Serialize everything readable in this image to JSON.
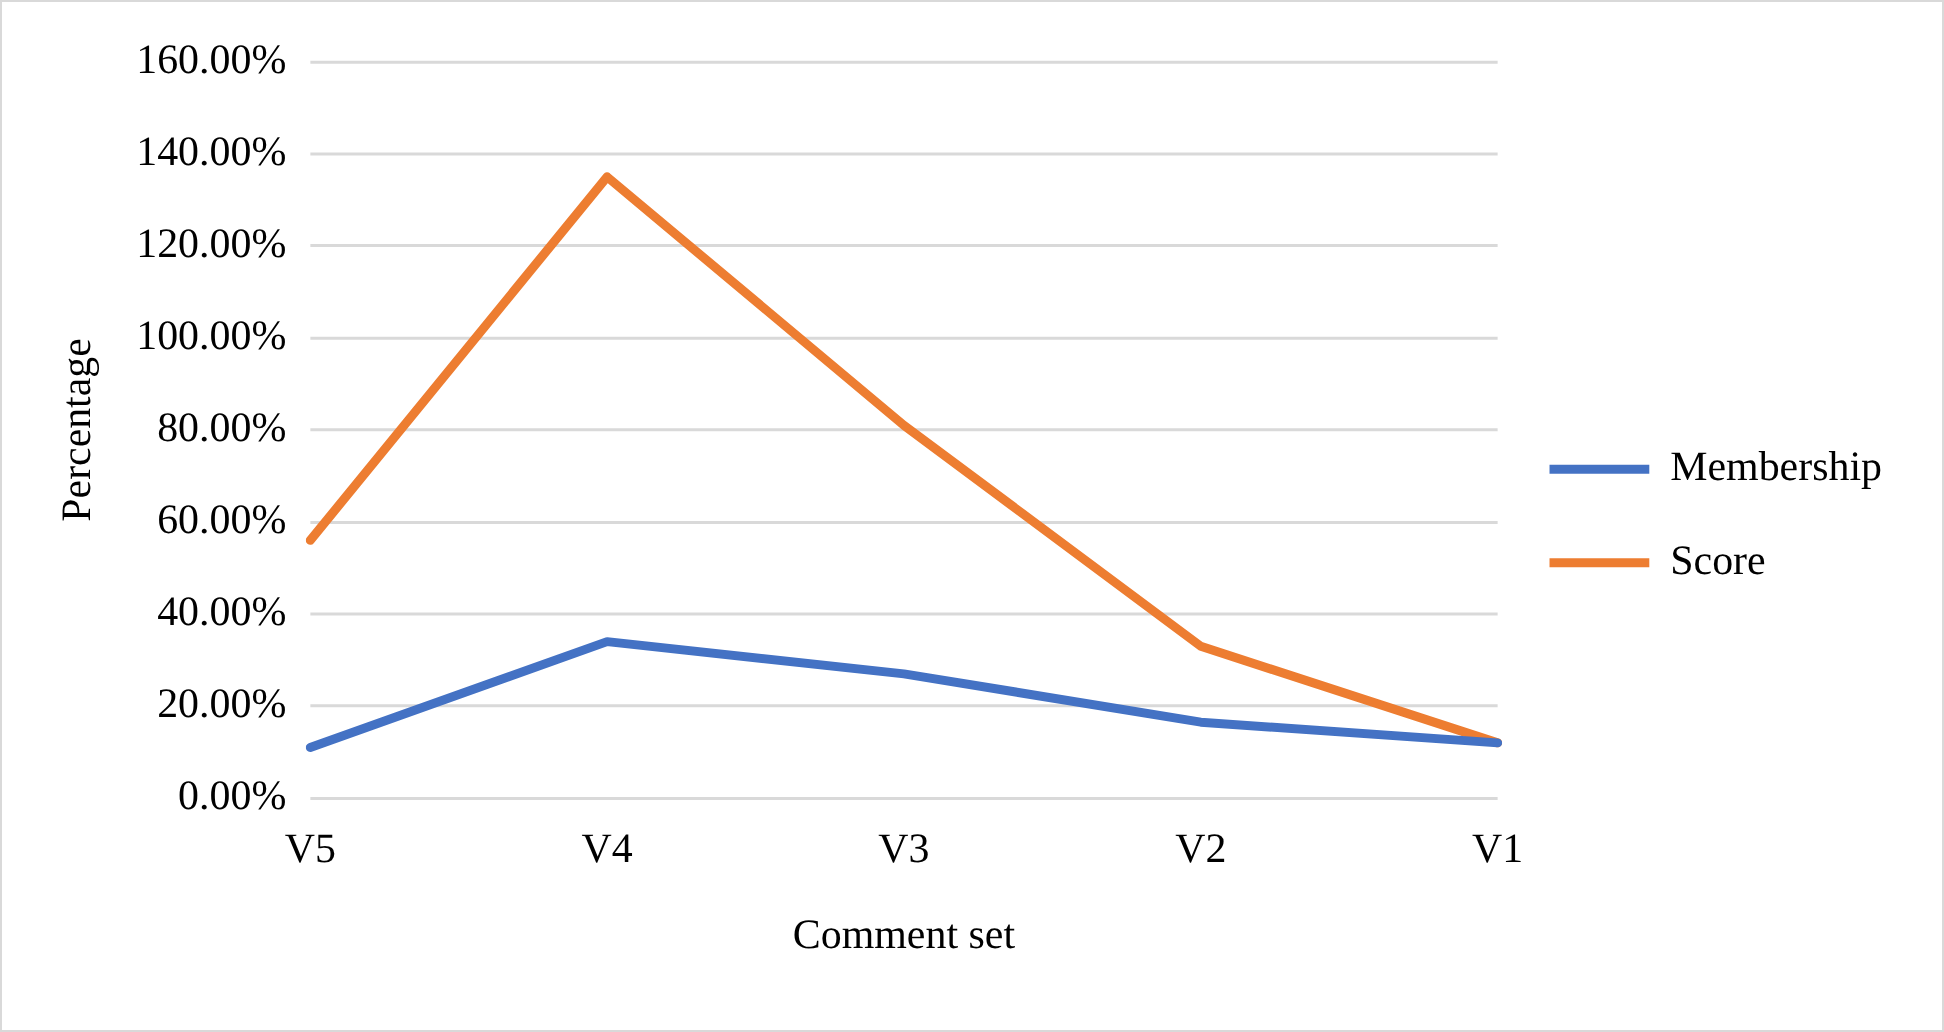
{
  "chart_data": {
    "type": "line",
    "xlabel": "Comment set",
    "ylabel": "Percentage",
    "categories": [
      "V5",
      "V4",
      "V3",
      "V2",
      "V1"
    ],
    "series": [
      {
        "name": "Membership",
        "color": "#4472c4",
        "values": [
          11,
          34,
          27,
          16.5,
          12
        ]
      },
      {
        "name": "Score",
        "color": "#ed7d31",
        "values": [
          56,
          135,
          81,
          33,
          12
        ]
      }
    ],
    "ylim": [
      0,
      160
    ],
    "yticks": [
      {
        "value": 0,
        "label": "0.00%"
      },
      {
        "value": 20,
        "label": "20.00%"
      },
      {
        "value": 40,
        "label": "40.00%"
      },
      {
        "value": 60,
        "label": "60.00%"
      },
      {
        "value": 80,
        "label": "80.00%"
      },
      {
        "value": 100,
        "label": "100.00%"
      },
      {
        "value": 120,
        "label": "120.00%"
      },
      {
        "value": 140,
        "label": "140.00%"
      },
      {
        "value": 160,
        "label": "160.00%"
      }
    ],
    "grid": "y",
    "legend": "right",
    "marker": "none",
    "line_style": "solid"
  }
}
